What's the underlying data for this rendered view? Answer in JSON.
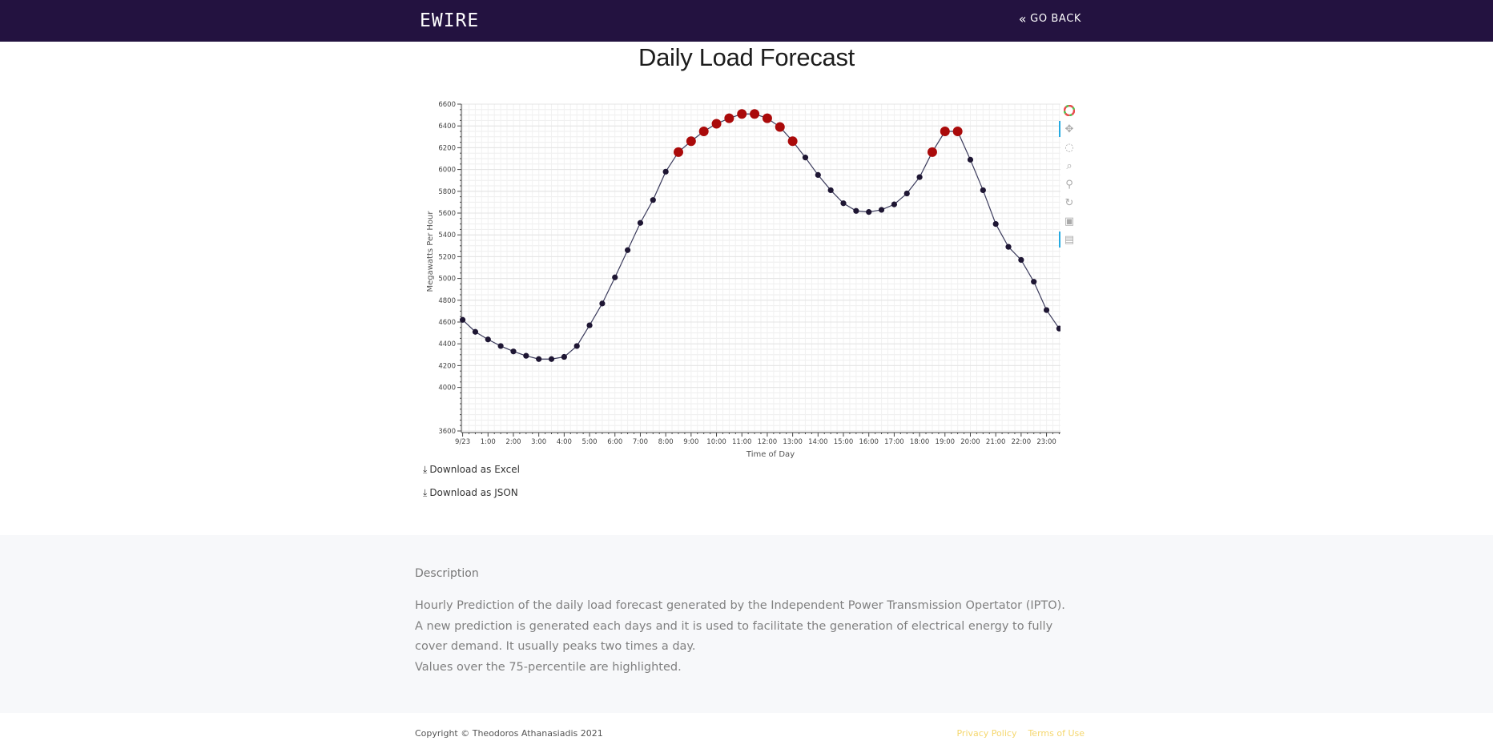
{
  "nav": {
    "brand": "EWIRE",
    "back_label": "GO BACK"
  },
  "page": {
    "title": "Daily Load Forecast"
  },
  "chart_data": {
    "type": "line",
    "title": "",
    "xlabel": "Time of Day",
    "ylabel": "Megawatts Per Hour",
    "ylim": [
      3600,
      6600
    ],
    "yticks": [
      3600,
      4000,
      4200,
      4400,
      4600,
      4800,
      5000,
      5200,
      5400,
      5600,
      5800,
      6000,
      6200,
      6400,
      6600
    ],
    "xticks": [
      "9/23",
      "1:00",
      "2:00",
      "3:00",
      "4:00",
      "5:00",
      "6:00",
      "7:00",
      "8:00",
      "9:00",
      "10:00",
      "11:00",
      "12:00",
      "13:00",
      "14:00",
      "15:00",
      "16:00",
      "17:00",
      "18:00",
      "19:00",
      "20:00",
      "21:00",
      "22:00",
      "23:00"
    ],
    "x": [
      0,
      0.5,
      1,
      1.5,
      2,
      2.5,
      3,
      3.5,
      4,
      4.5,
      5,
      5.5,
      6,
      6.5,
      7,
      7.5,
      8,
      8.5,
      9,
      9.5,
      10,
      10.5,
      11,
      11.5,
      12,
      12.5,
      13,
      13.5,
      14,
      14.5,
      15,
      15.5,
      16,
      16.5,
      17,
      17.5,
      18,
      18.5,
      19,
      19.5,
      20,
      20.5,
      21,
      21.5,
      22,
      22.5,
      23,
      23.5
    ],
    "values": [
      4620,
      4510,
      4440,
      4380,
      4330,
      4290,
      4260,
      4260,
      4280,
      4380,
      4570,
      4770,
      5010,
      5260,
      5510,
      5720,
      5980,
      6160,
      6260,
      6350,
      6420,
      6470,
      6510,
      6510,
      6470,
      6390,
      6260,
      6110,
      5950,
      5810,
      5690,
      5620,
      5610,
      5630,
      5680,
      5780,
      5930,
      6160,
      6350,
      6350,
      6090,
      5810,
      5500,
      5290,
      5170,
      4970,
      4710,
      4540
    ],
    "highlight_threshold_label": "Values over the 75-percentile are highlighted.",
    "line_color": "#3b3b5c",
    "point_color": "#1e1633",
    "highlight_color": "#aa0a0a",
    "highlight_threshold": 6140,
    "grid": true
  },
  "toolbar": {
    "tools": [
      "bokeh-logo-icon",
      "pan-icon",
      "lasso-icon",
      "zoom-icon",
      "wheel-zoom-icon",
      "reset-icon",
      "save-icon",
      "hover-icon"
    ]
  },
  "downloads": {
    "excel": "Download as Excel",
    "json": "Download as JSON"
  },
  "description": {
    "heading": "Description",
    "line1": "Hourly Prediction of the daily load forecast generated by the Independent Power Transmission Opertator (IPTO).",
    "line2": "A new prediction is generated each days and it is used to facilitate the generation of electrical energy to fully cover demand. It usually peaks two times a day.",
    "line3": "Values over the 75-percentile are highlighted."
  },
  "footer": {
    "copyright": "Copyright © Theodoros Athanasiadis 2021",
    "privacy": "Privacy Policy",
    "terms": "Terms of Use"
  }
}
